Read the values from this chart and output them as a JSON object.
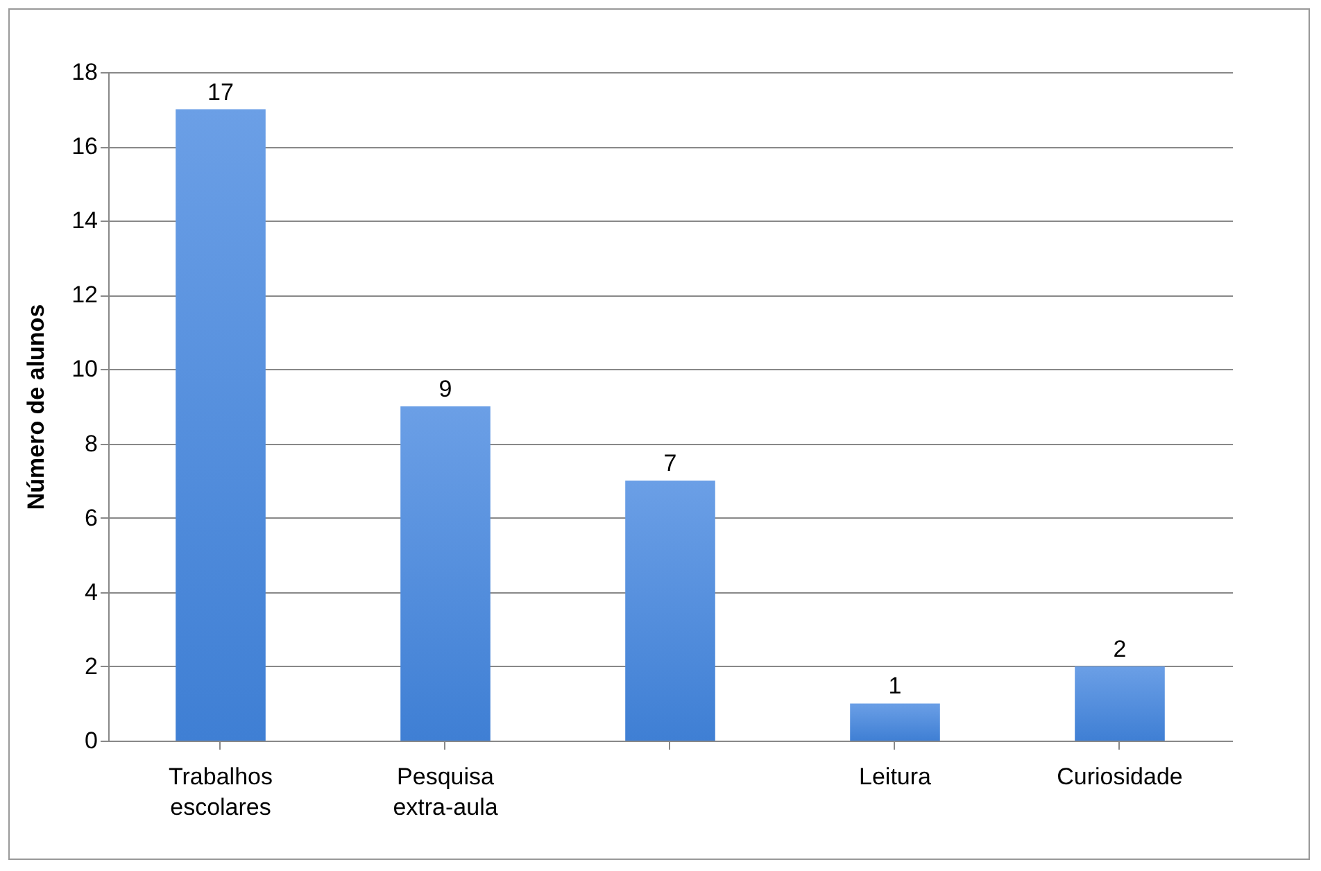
{
  "chart_data": {
    "type": "bar",
    "ylabel": "Número de alunos",
    "categories": [
      "Trabalhos escolares",
      "Pesquisa extra-aula",
      null,
      "Leitura",
      "Curiosidade"
    ],
    "values": [
      17,
      9,
      7,
      1,
      2
    ],
    "color": "#6b9fe6",
    "ylim": [
      0,
      18
    ],
    "yticks": [
      0,
      2,
      4,
      6,
      8,
      10,
      12,
      14,
      16,
      18
    ],
    "grid": "y",
    "data_labels": true
  }
}
